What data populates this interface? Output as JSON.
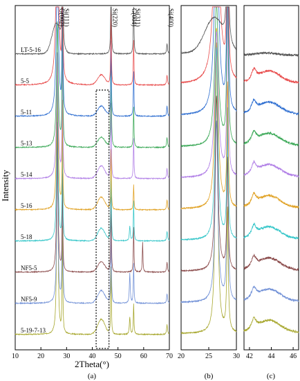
{
  "chart_data": [
    {
      "panel": "(a)",
      "type": "line",
      "xlabel": "2Theta(°)",
      "ylabel": "Intensity",
      "xlim": [
        10,
        70
      ],
      "xticks": [
        10,
        20,
        30,
        40,
        50,
        60,
        70
      ],
      "peak_labels": [
        {
          "text": "G(002)",
          "x": 26.5
        },
        {
          "text": "Si(111)",
          "x": 28.4
        },
        {
          "text": "Si(220)",
          "x": 47.3
        },
        {
          "text": "G(004)",
          "x": 54.6
        },
        {
          "text": "Si(311)",
          "x": 56.1
        },
        {
          "text": "Si(400)",
          "x": 69.1
        }
      ],
      "highlight_range": [
        41.5,
        46.5
      ],
      "series": [
        {
          "name": "5-19-7-13",
          "color": "#a6a62b",
          "peaks": [
            [
              26.4,
              1.0,
              0.25
            ],
            [
              28.4,
              0.42,
              0.15
            ],
            [
              47.3,
              0.27,
              0.15
            ],
            [
              54.6,
              0.07,
              0.2
            ],
            [
              56.1,
              0.12,
              0.15
            ],
            [
              69.1,
              0.04,
              0.2
            ]
          ],
          "humps": [
            [
              43.5,
              0.06,
              2.0
            ]
          ]
        },
        {
          "name": "NF5-9",
          "color": "#6f8fd6",
          "peaks": [
            [
              26.4,
              0.62,
              0.3
            ],
            [
              28.4,
              0.6,
              0.15
            ],
            [
              47.3,
              0.34,
              0.15
            ],
            [
              54.6,
              0.12,
              0.2
            ],
            [
              56.1,
              0.16,
              0.15
            ],
            [
              69.1,
              0.04,
              0.2
            ]
          ],
          "humps": [
            [
              43.5,
              0.05,
              2.0
            ]
          ]
        },
        {
          "name": "NF5-5",
          "color": "#8a4a4a",
          "peaks": [
            [
              26.4,
              0.6,
              0.3
            ],
            [
              28.4,
              0.38,
              0.15
            ],
            [
              47.3,
              0.3,
              0.15
            ],
            [
              56.1,
              0.18,
              0.15
            ],
            [
              59.6,
              0.12,
              0.15
            ],
            [
              69.1,
              0.04,
              0.2
            ]
          ],
          "humps": [
            [
              43.5,
              0.04,
              2.0
            ]
          ]
        },
        {
          "name": "5-18",
          "color": "#35c6c9",
          "peaks": [
            [
              26.4,
              0.66,
              0.3
            ],
            [
              28.4,
              0.44,
              0.15
            ],
            [
              47.3,
              0.3,
              0.15
            ],
            [
              54.6,
              0.06,
              0.2
            ],
            [
              56.1,
              0.16,
              0.15
            ],
            [
              69.1,
              0.04,
              0.2
            ]
          ],
          "humps": [
            [
              43.5,
              0.05,
              2.0
            ]
          ]
        },
        {
          "name": "5-16",
          "color": "#e0a020",
          "peaks": [
            [
              26.4,
              0.62,
              0.35
            ],
            [
              28.4,
              0.42,
              0.15
            ],
            [
              47.3,
              0.24,
              0.15
            ],
            [
              56.1,
              0.1,
              0.15
            ],
            [
              69.1,
              0.04,
              0.2
            ]
          ],
          "humps": [
            [
              43.5,
              0.05,
              2.0
            ]
          ]
        },
        {
          "name": "5-14",
          "color": "#b07ee6",
          "peaks": [
            [
              26.4,
              0.5,
              0.4
            ],
            [
              28.4,
              0.58,
              0.15
            ],
            [
              47.3,
              0.3,
              0.15
            ],
            [
              56.1,
              0.16,
              0.15
            ],
            [
              69.1,
              0.04,
              0.2
            ]
          ],
          "humps": [
            [
              43.5,
              0.05,
              2.0
            ]
          ]
        },
        {
          "name": "5-13",
          "color": "#3aa856",
          "peaks": [
            [
              26.4,
              0.5,
              0.4
            ],
            [
              28.4,
              0.66,
              0.15
            ],
            [
              47.3,
              0.42,
              0.15
            ],
            [
              56.1,
              0.16,
              0.15
            ],
            [
              69.1,
              0.04,
              0.2
            ]
          ],
          "humps": [
            [
              43.5,
              0.04,
              2.0
            ]
          ]
        },
        {
          "name": "5-11",
          "color": "#2b6cd0",
          "peaks": [
            [
              26.4,
              0.7,
              0.45
            ],
            [
              28.4,
              0.72,
              0.15
            ],
            [
              47.3,
              0.3,
              0.15
            ],
            [
              56.1,
              0.18,
              0.15
            ],
            [
              69.1,
              0.04,
              0.2
            ]
          ],
          "humps": [
            [
              43.5,
              0.04,
              2.0
            ]
          ]
        },
        {
          "name": "5-5",
          "color": "#e84a4a",
          "peaks": [
            [
              26.4,
              0.74,
              0.55
            ],
            [
              28.4,
              0.66,
              0.15
            ],
            [
              47.3,
              0.3,
              0.15
            ],
            [
              56.1,
              0.18,
              0.15
            ],
            [
              69.1,
              0.04,
              0.2
            ]
          ],
          "humps": [
            [
              43.5,
              0.04,
              2.0
            ]
          ]
        },
        {
          "name": "LT-5-16",
          "color": "#555555",
          "peaks": [
            [
              28.4,
              0.66,
              0.15
            ],
            [
              47.3,
              0.36,
              0.15
            ],
            [
              56.1,
              0.22,
              0.15
            ],
            [
              69.1,
              0.04,
              0.2
            ]
          ],
          "humps": [
            [
              26.0,
              0.12,
              2.4
            ]
          ]
        }
      ]
    },
    {
      "panel": "(b)",
      "type": "line",
      "xlim": [
        20,
        30
      ],
      "xticks": [
        20,
        25,
        30
      ],
      "series_ref": "same samples as (a)"
    },
    {
      "panel": "(c)",
      "type": "line",
      "xlim": [
        41.5,
        46.5
      ],
      "xticks": [
        42,
        44,
        46
      ],
      "series_ref": "same samples as (a)"
    }
  ]
}
